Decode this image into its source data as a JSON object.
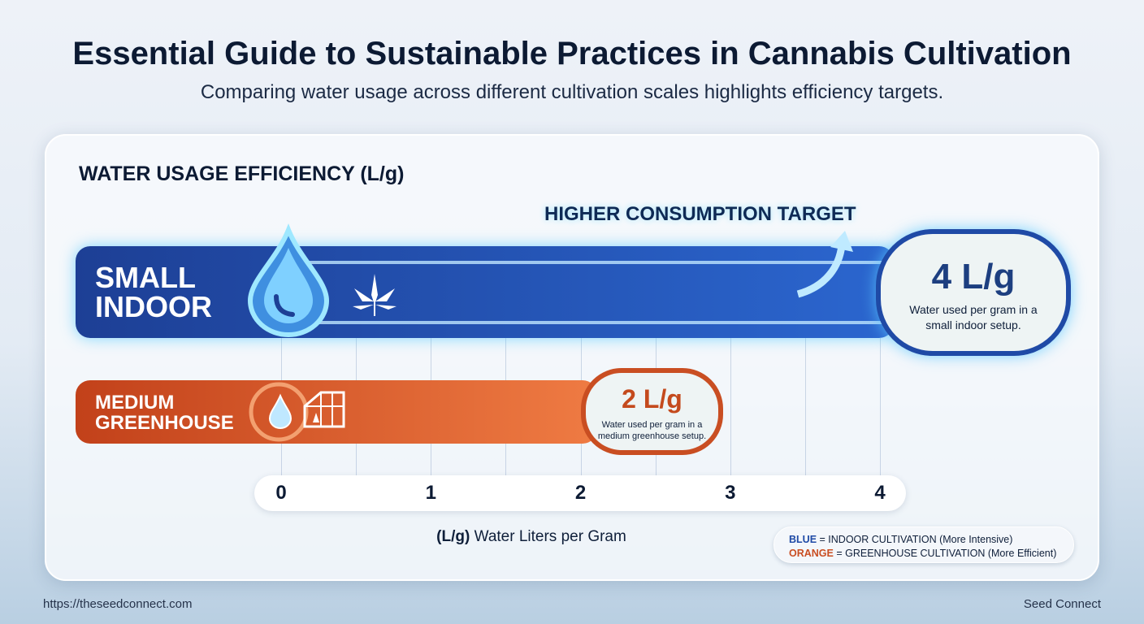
{
  "title": "Essential Guide to Sustainable Practices in Cannabis Cultivation",
  "subtitle": "Comparing water usage across different cultivation scales highlights efficiency targets.",
  "chart_data": {
    "type": "bar",
    "orientation": "horizontal",
    "title": "WATER USAGE EFFICIENCY (L/g)",
    "annotation": "HIGHER CONSUMPTION TARGET",
    "categories": [
      "SMALL INDOOR",
      "MEDIUM GREENHOUSE"
    ],
    "values": [
      4,
      2
    ],
    "value_labels": [
      "4 L/g",
      "2 L/g"
    ],
    "descriptions": [
      "Water used per gram in a small indoor setup.",
      "Water used per gram in a medium greenhouse setup."
    ],
    "colors": [
      "#1f4aa6",
      "#d2522a"
    ],
    "xticks": [
      "0",
      "1",
      "2",
      "3",
      "4"
    ],
    "xlim": [
      0,
      4
    ],
    "xlabel_bold": "(L/g)",
    "xlabel": "Water Liters per Gram",
    "legend": [
      {
        "key": "BLUE",
        "text": "= INDOOR CULTIVATION (More Intensive)",
        "color": "#1f4aa6"
      },
      {
        "key": "ORANGE",
        "text": "= GREENHOUSE CULTIVATION (More Efficient)",
        "color": "#c94e22"
      }
    ]
  },
  "footer": {
    "url": "https://theseedconnect.com",
    "brand": "Seed Connect"
  }
}
